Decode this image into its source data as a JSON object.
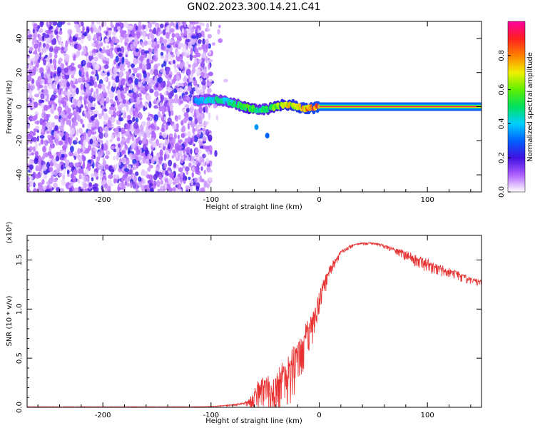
{
  "title": "GN02.2023.300.14.21.C41",
  "chart_data": [
    {
      "type": "heatmap",
      "xlabel": "Height of straight line (km)",
      "ylabel": "Frequency (Hz)",
      "xlim": [
        -270,
        150
      ],
      "ylim": [
        -50,
        50
      ],
      "xticks": [
        -200,
        -100,
        0,
        100
      ],
      "yticks": [
        -40,
        -20,
        0,
        20,
        40
      ],
      "colorbar": {
        "label": "Normalized spectral amplitude",
        "range": [
          0,
          1
        ],
        "ticks": [
          "0.0",
          "0.2",
          "0.4",
          "0.6",
          "0.8"
        ],
        "colors": [
          "#ffffff",
          "#b060ff",
          "#4010e0",
          "#0060ff",
          "#00d0ff",
          "#00e060",
          "#60f000",
          "#f0f000",
          "#ff8000",
          "#ff2020",
          "#ff00a0"
        ]
      },
      "noise_region": {
        "x": [
          -270,
          -100
        ],
        "y": [
          -50,
          50
        ],
        "amplitude": 0.12
      },
      "ridge": [
        {
          "x": -115,
          "y": 3,
          "a": 0.35
        },
        {
          "x": -105,
          "y": 4,
          "a": 0.45
        },
        {
          "x": -95,
          "y": 4,
          "a": 0.5
        },
        {
          "x": -85,
          "y": 3,
          "a": 0.5
        },
        {
          "x": -75,
          "y": 1,
          "a": 0.55
        },
        {
          "x": -65,
          "y": -1,
          "a": 0.65
        },
        {
          "x": -55,
          "y": -2,
          "a": 0.55
        },
        {
          "x": -45,
          "y": -1,
          "a": 0.6
        },
        {
          "x": -35,
          "y": 1,
          "a": 0.75
        },
        {
          "x": -25,
          "y": 1,
          "a": 0.8
        },
        {
          "x": -15,
          "y": -1,
          "a": 0.85
        },
        {
          "x": -5,
          "y": -1,
          "a": 0.9
        },
        {
          "x": 0,
          "y": 0,
          "a": 0.95
        },
        {
          "x": 150,
          "y": 0,
          "a": 0.95
        }
      ],
      "spurs": [
        {
          "x": -58,
          "y": -12,
          "a": 0.35
        },
        {
          "x": -48,
          "y": -17,
          "a": 0.3
        }
      ]
    },
    {
      "type": "line",
      "xlabel": "Height of straight line (km)",
      "ylabel": "SNR (10 * v/v)",
      "scale_note": "(x10⁴)",
      "xlim": [
        -270,
        150
      ],
      "ylim": [
        0,
        1.75
      ],
      "xticks": [
        -200,
        -100,
        0,
        100
      ],
      "yticks": [
        "0.0",
        "0.5",
        "1.0",
        "1.5"
      ],
      "line_color": "#e83030",
      "series": [
        {
          "x": [
            -270,
            -200,
            -120,
            -100,
            -90,
            -80,
            -70,
            -65,
            -60,
            -55,
            -50,
            -45,
            -40,
            -35,
            -30,
            -25,
            -20,
            -15,
            -10,
            -5,
            0,
            5,
            10,
            20,
            30,
            40,
            50,
            60,
            70,
            80,
            90,
            100,
            110,
            120,
            130,
            140,
            150
          ],
          "y": [
            0.005,
            0.005,
            0.005,
            0.01,
            0.02,
            0.03,
            0.05,
            0.08,
            0.2,
            0.3,
            0.35,
            0.3,
            0.35,
            0.45,
            0.5,
            0.6,
            0.75,
            0.8,
            0.95,
            1.05,
            1.2,
            1.35,
            1.45,
            1.6,
            1.66,
            1.68,
            1.68,
            1.66,
            1.62,
            1.6,
            1.56,
            1.52,
            1.46,
            1.42,
            1.38,
            1.33,
            1.3
          ],
          "noise": [
            0,
            0,
            0,
            0.005,
            0.01,
            0.015,
            0.03,
            0.08,
            0.35,
            0.3,
            0.35,
            0.35,
            0.4,
            0.45,
            0.5,
            0.55,
            0.5,
            0.45,
            0.4,
            0.35,
            0.3,
            0.2,
            0.12,
            0.06,
            0.04,
            0.03,
            0.03,
            0.04,
            0.06,
            0.1,
            0.14,
            0.14,
            0.12,
            0.1,
            0.1,
            0.08,
            0.06
          ]
        }
      ]
    }
  ]
}
